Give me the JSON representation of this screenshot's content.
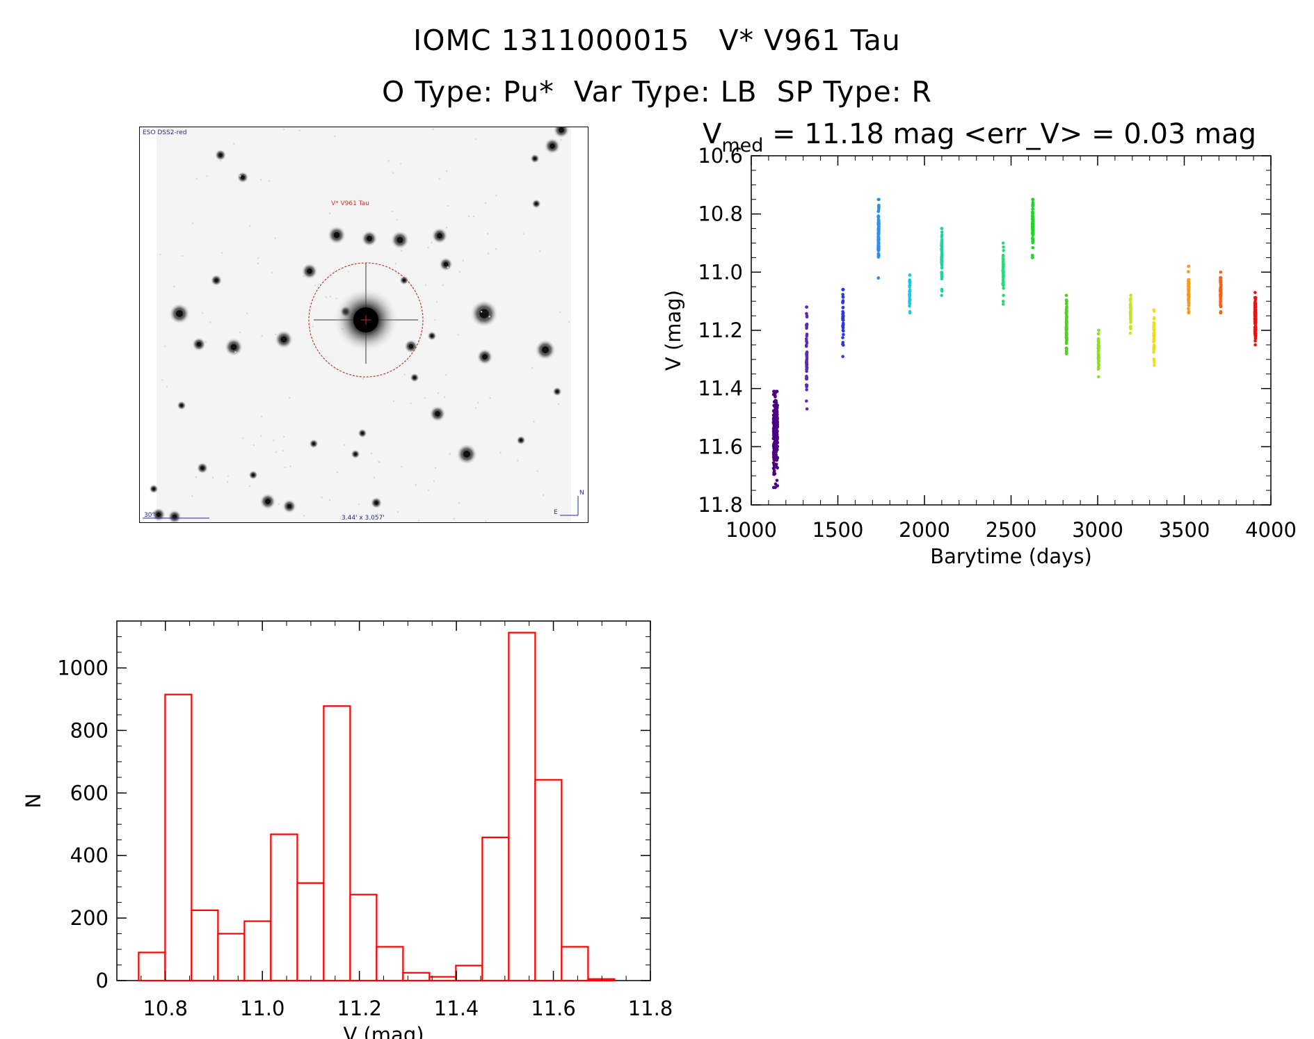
{
  "header": {
    "title_line1": "IOMC 1311000015   V* V961 Tau",
    "title_line2": "O Type: Pu*  Var Type: LB  SP Type: R"
  },
  "finder_chart": {
    "survey_label": "ESO DSS2-red",
    "target_label": "V* V961 Tau",
    "scale_label": "30\"",
    "size_label": "3.44' x 3.057'",
    "compass_north": "N",
    "compass_east": "E",
    "circle_color": "#c0392b",
    "label_color": "#1f2a8c"
  },
  "chart_data": [
    {
      "type": "scatter",
      "title_main": "V",
      "title_sub": "med",
      "title_rest": " = 11.18 mag <err_V> = 0.03 mag",
      "xlabel": "Barytime (days)",
      "ylabel": "V (mag)",
      "xlim": [
        1000,
        4000
      ],
      "ylim": [
        11.8,
        10.6
      ],
      "y_inverted": true,
      "x_ticks": [
        1000,
        1500,
        2000,
        2500,
        3000,
        3500,
        4000
      ],
      "y_ticks": [
        "10.6",
        "10.8",
        "11.0",
        "11.2",
        "11.4",
        "11.6",
        "11.8"
      ],
      "clusters": [
        {
          "x": 1140,
          "ymin": 11.41,
          "ymax": 11.74,
          "center": 11.56,
          "color": "#4b0082",
          "n": 260,
          "xspread": 24
        },
        {
          "x": 1320,
          "ymin": 11.12,
          "ymax": 11.47,
          "center": 11.3,
          "color": "#5b2bb0",
          "n": 60,
          "xspread": 4
        },
        {
          "x": 1530,
          "ymin": 11.06,
          "ymax": 11.29,
          "center": 11.14,
          "color": "#2a3ad6",
          "n": 40,
          "xspread": 4
        },
        {
          "x": 1735,
          "ymin": 10.75,
          "ymax": 11.02,
          "center": 10.86,
          "color": "#2b8ff0",
          "n": 90,
          "xspread": 4
        },
        {
          "x": 1915,
          "ymin": 11.01,
          "ymax": 11.14,
          "center": 11.07,
          "color": "#19c8e8",
          "n": 30,
          "xspread": 3
        },
        {
          "x": 2100,
          "ymin": 10.85,
          "ymax": 11.08,
          "center": 10.95,
          "color": "#1ed3a0",
          "n": 60,
          "xspread": 3
        },
        {
          "x": 2455,
          "ymin": 10.9,
          "ymax": 11.11,
          "center": 11.0,
          "color": "#2ed87a",
          "n": 50,
          "xspread": 3
        },
        {
          "x": 2625,
          "ymin": 10.75,
          "ymax": 10.95,
          "center": 10.84,
          "color": "#22d32a",
          "n": 80,
          "xspread": 3
        },
        {
          "x": 2820,
          "ymin": 11.08,
          "ymax": 11.28,
          "center": 11.18,
          "color": "#4ed21e",
          "n": 70,
          "xspread": 3
        },
        {
          "x": 3005,
          "ymin": 11.2,
          "ymax": 11.36,
          "center": 11.28,
          "color": "#8ee01a",
          "n": 60,
          "xspread": 3
        },
        {
          "x": 3190,
          "ymin": 11.08,
          "ymax": 11.21,
          "center": 11.14,
          "color": "#c4e81e",
          "n": 40,
          "xspread": 3
        },
        {
          "x": 3325,
          "ymin": 11.13,
          "ymax": 11.32,
          "center": 11.22,
          "color": "#f0dc1a",
          "n": 50,
          "xspread": 3
        },
        {
          "x": 3525,
          "ymin": 10.98,
          "ymax": 11.14,
          "center": 11.06,
          "color": "#f59a1c",
          "n": 50,
          "xspread": 3
        },
        {
          "x": 3710,
          "ymin": 11.0,
          "ymax": 11.14,
          "center": 11.07,
          "color": "#f06218",
          "n": 50,
          "xspread": 3
        },
        {
          "x": 3910,
          "ymin": 11.07,
          "ymax": 11.25,
          "center": 11.16,
          "color": "#e81414",
          "n": 110,
          "xspread": 5
        }
      ]
    },
    {
      "type": "bar",
      "histogram": true,
      "xlabel": "V (mag)",
      "ylabel": "N",
      "xlim": [
        10.7,
        11.8
      ],
      "ylim": [
        0,
        1150
      ],
      "x_ticks": [
        "10.8",
        "11.0",
        "11.2",
        "11.4",
        "11.6",
        "11.8"
      ],
      "x_tick_values": [
        10.8,
        11.0,
        11.2,
        11.4,
        11.6,
        11.8
      ],
      "y_ticks": [
        0,
        200,
        400,
        600,
        800,
        1000
      ],
      "bin_width": 0.0545,
      "bin_start": 10.745,
      "values": [
        90,
        915,
        225,
        150,
        190,
        468,
        312,
        878,
        275,
        108,
        25,
        12,
        48,
        458,
        1113,
        642,
        108,
        5
      ],
      "bar_color": "#ff0000"
    }
  ]
}
